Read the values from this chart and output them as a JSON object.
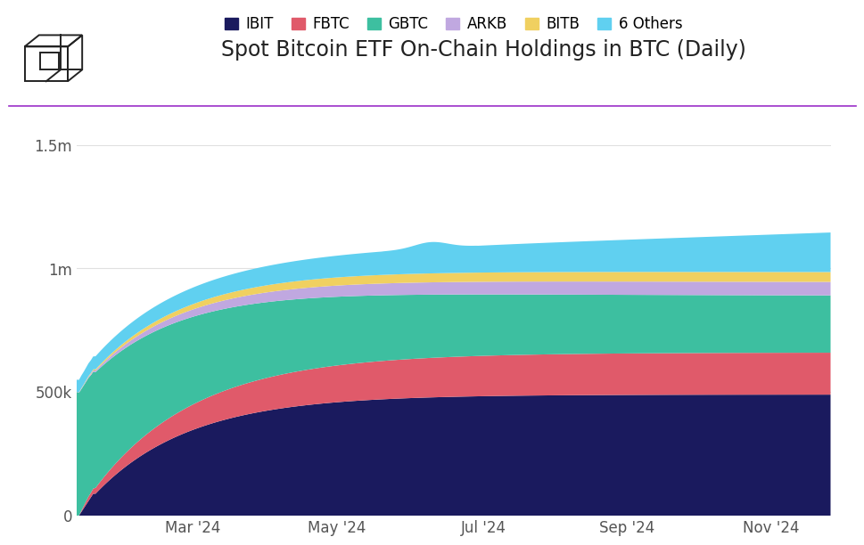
{
  "title": "Spot Bitcoin ETF On-Chain Holdings in BTC (Daily)",
  "series_labels": [
    "IBIT",
    "FBTC",
    "GBTC",
    "ARKB",
    "BITB",
    "6 Others"
  ],
  "series_colors": [
    "#1a1a5e",
    "#e05a6a",
    "#3dbfa0",
    "#c0a8e0",
    "#f0d060",
    "#60d0f0"
  ],
  "yticks": [
    0,
    500000,
    1000000,
    1500000
  ],
  "ytick_labels": [
    "0",
    "500k",
    "1m",
    "1.5m"
  ],
  "ylim": [
    0,
    1600000
  ],
  "background_color": "#ffffff",
  "title_fontsize": 17,
  "legend_fontsize": 12,
  "tick_fontsize": 12,
  "line_color": "#9b30c8",
  "grid_color": "#e0e0e0",
  "n": 320,
  "x_tick_labels": [
    "Mar '24",
    "May '24",
    "Jul '24",
    "Sep '24",
    "Nov '24"
  ],
  "x_tick_positions": [
    49,
    110,
    172,
    233,
    294
  ]
}
